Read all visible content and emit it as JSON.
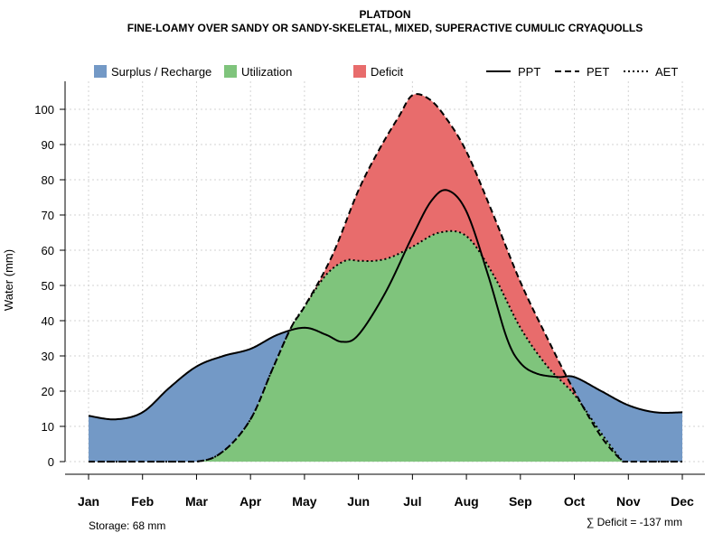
{
  "chart_data": {
    "type": "area",
    "title": "PLATDON",
    "subtitle": "FINE-LOAMY OVER SANDY OR SANDY-SKELETAL, MIXED, SUPERACTIVE CUMULIC CRYAQUOLLS",
    "xlabel": "",
    "ylabel": "Water (mm)",
    "ylim": [
      0,
      108
    ],
    "yticks": [
      0,
      10,
      20,
      30,
      40,
      50,
      60,
      70,
      80,
      90,
      100
    ],
    "categories": [
      "Jan",
      "Feb",
      "Mar",
      "Apr",
      "May",
      "Jun",
      "Jul",
      "Aug",
      "Sep",
      "Oct",
      "Nov",
      "Dec"
    ],
    "grid": true,
    "series": [
      {
        "name": "PPT",
        "style": "solid",
        "points": [
          [
            1,
            13
          ],
          [
            1.5,
            12
          ],
          [
            2,
            14
          ],
          [
            2.5,
            21
          ],
          [
            3,
            27
          ],
          [
            3.5,
            30
          ],
          [
            4,
            32
          ],
          [
            4.5,
            36
          ],
          [
            5,
            38
          ],
          [
            5.4,
            36
          ],
          [
            5.7,
            34
          ],
          [
            6,
            36
          ],
          [
            6.5,
            48
          ],
          [
            7,
            64
          ],
          [
            7.35,
            74
          ],
          [
            7.65,
            77
          ],
          [
            8,
            71
          ],
          [
            8.4,
            53
          ],
          [
            8.75,
            35
          ],
          [
            9,
            28
          ],
          [
            9.3,
            25
          ],
          [
            9.7,
            24
          ],
          [
            10,
            24
          ],
          [
            10.5,
            20
          ],
          [
            11,
            16
          ],
          [
            11.5,
            14
          ],
          [
            12,
            14
          ]
        ]
      },
      {
        "name": "PET",
        "style": "dashed",
        "points": [
          [
            1,
            0
          ],
          [
            2,
            0
          ],
          [
            3,
            0
          ],
          [
            3.5,
            3
          ],
          [
            4,
            12
          ],
          [
            4.4,
            26
          ],
          [
            4.75,
            38
          ],
          [
            5,
            44
          ],
          [
            5.5,
            58
          ],
          [
            6,
            77
          ],
          [
            6.4,
            89
          ],
          [
            6.75,
            98
          ],
          [
            7,
            104
          ],
          [
            7.3,
            103
          ],
          [
            7.6,
            98
          ],
          [
            8,
            88
          ],
          [
            8.5,
            70
          ],
          [
            9,
            51
          ],
          [
            9.5,
            35
          ],
          [
            10,
            20
          ],
          [
            10.5,
            7
          ],
          [
            10.9,
            0
          ],
          [
            11,
            0
          ],
          [
            12,
            0
          ]
        ]
      },
      {
        "name": "AET",
        "style": "dotted",
        "points": [
          [
            1,
            0
          ],
          [
            2,
            0
          ],
          [
            3,
            0
          ],
          [
            3.5,
            3
          ],
          [
            4,
            12
          ],
          [
            4.4,
            26
          ],
          [
            4.75,
            38
          ],
          [
            5,
            44
          ],
          [
            5.4,
            53
          ],
          [
            5.75,
            57
          ],
          [
            6,
            57
          ],
          [
            6.3,
            57
          ],
          [
            6.6,
            58
          ],
          [
            7,
            61
          ],
          [
            7.5,
            65
          ],
          [
            8,
            64
          ],
          [
            8.5,
            53
          ],
          [
            9,
            38
          ],
          [
            9.5,
            27
          ],
          [
            10,
            19
          ],
          [
            10.5,
            8
          ],
          [
            10.9,
            0
          ],
          [
            11,
            0
          ],
          [
            12,
            0
          ]
        ]
      }
    ],
    "areas": [
      {
        "name": "Surplus / Recharge",
        "color": "#7399c6"
      },
      {
        "name": "Utilization",
        "color": "#7fc47c"
      },
      {
        "name": "Deficit",
        "color": "#e86c6c"
      }
    ],
    "annotations": {
      "storage": "Storage: 68 mm",
      "deficit": "∑ Deficit = -137 mm"
    }
  },
  "legend": {
    "surplus_label": "Surplus / Recharge",
    "utilization_label": "Utilization",
    "deficit_label": "Deficit",
    "ppt_label": "PPT",
    "pet_label": "PET",
    "aet_label": "AET"
  },
  "colors": {
    "surplus": "#7399c6",
    "utilization": "#7fc47c",
    "deficit": "#e86c6c",
    "line": "#000000"
  }
}
